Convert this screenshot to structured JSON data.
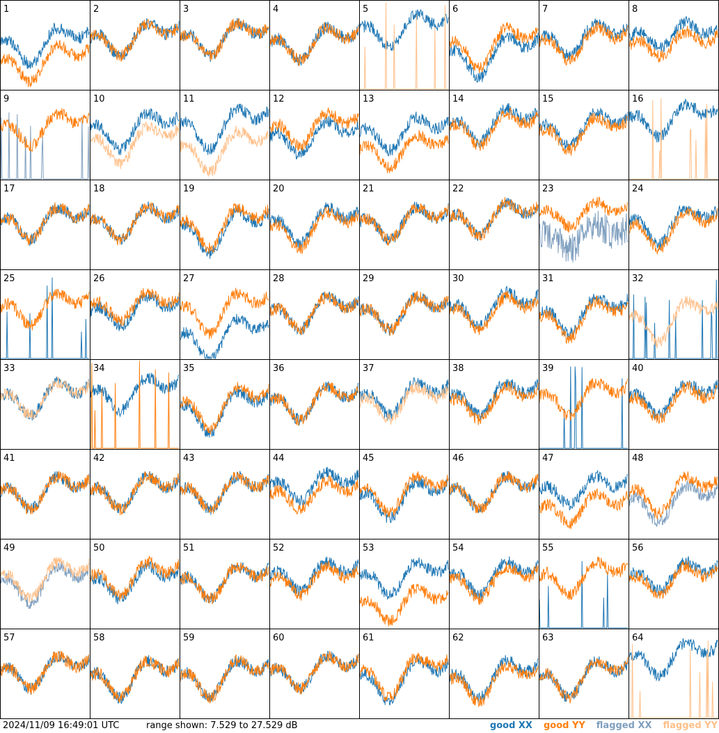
{
  "footer": {
    "timestamp": "2024/11/09 16:49:01 UTC",
    "range_text": "range shown: 7.529 to 27.529 dB"
  },
  "legend": [
    {
      "key": "good_xx",
      "label": "good XX",
      "color": "#1f77b4"
    },
    {
      "key": "good_yy",
      "label": "good YY",
      "color": "#ff7f0e"
    },
    {
      "key": "flagged_xx",
      "label": "flagged XX",
      "color": "#7f9fbf"
    },
    {
      "key": "flagged_yy",
      "label": "flagged YY",
      "color": "#ffc08a"
    }
  ],
  "chart_data": {
    "type": "line",
    "ylim": [
      7.529,
      27.529
    ],
    "grid": {
      "rows": 8,
      "cols": 8
    },
    "panels": [
      {
        "id": 1,
        "xx": "good",
        "yy": "good",
        "xx_level": 0.55,
        "yy_level": 0.35,
        "dip": 0.25
      },
      {
        "id": 2,
        "xx": "good",
        "yy": "good",
        "xx_level": 0.6,
        "yy_level": 0.6,
        "dip": 0.2
      },
      {
        "id": 3,
        "xx": "good",
        "yy": "good",
        "xx_level": 0.6,
        "yy_level": 0.6,
        "dip": 0.2
      },
      {
        "id": 4,
        "xx": "good",
        "yy": "good",
        "xx_level": 0.55,
        "yy_level": 0.55,
        "dip": 0.2
      },
      {
        "id": 5,
        "xx": "good",
        "yy": "flagged_spikes",
        "xx_level": 0.7,
        "yy_level": 0.0,
        "dip": 0.2
      },
      {
        "id": 6,
        "xx": "good",
        "yy": "good",
        "xx_level": 0.45,
        "yy_level": 0.55,
        "dip": 0.3
      },
      {
        "id": 7,
        "xx": "good",
        "yy": "good",
        "xx_level": 0.6,
        "yy_level": 0.55,
        "dip": 0.2
      },
      {
        "id": 8,
        "xx": "good",
        "yy": "good",
        "xx_level": 0.6,
        "yy_level": 0.5,
        "dip": 0.1
      },
      {
        "id": 9,
        "xx": "flagged_spikes",
        "yy": "good",
        "xx_level": 0.0,
        "yy_level": 0.6,
        "dip": 0.2
      },
      {
        "id": 10,
        "xx": "good",
        "yy": "flagged",
        "xx_level": 0.6,
        "yy_level": 0.45,
        "dip": 0.25
      },
      {
        "id": 11,
        "xx": "good",
        "yy": "flagged",
        "xx_level": 0.65,
        "yy_level": 0.4,
        "dip": 0.3
      },
      {
        "id": 12,
        "xx": "good",
        "yy": "good",
        "xx_level": 0.5,
        "yy_level": 0.6,
        "dip": 0.2
      },
      {
        "id": 13,
        "xx": "good",
        "yy": "good",
        "xx_level": 0.55,
        "yy_level": 0.35,
        "dip": 0.2
      },
      {
        "id": 14,
        "xx": "good",
        "yy": "good",
        "xx_level": 0.65,
        "yy_level": 0.6,
        "dip": 0.2
      },
      {
        "id": 15,
        "xx": "good",
        "yy": "good",
        "xx_level": 0.6,
        "yy_level": 0.55,
        "dip": 0.2
      },
      {
        "id": 16,
        "xx": "good",
        "yy": "flagged_spikes",
        "xx_level": 0.7,
        "yy_level": 0.0,
        "dip": 0.2
      },
      {
        "id": 17,
        "xx": "good",
        "yy": "good",
        "xx_level": 0.55,
        "yy_level": 0.55,
        "dip": 0.2
      },
      {
        "id": 18,
        "xx": "good",
        "yy": "good",
        "xx_level": 0.55,
        "yy_level": 0.55,
        "dip": 0.2
      },
      {
        "id": 19,
        "xx": "good",
        "yy": "good",
        "xx_level": 0.5,
        "yy_level": 0.55,
        "dip": 0.3
      },
      {
        "id": 20,
        "xx": "good",
        "yy": "good",
        "xx_level": 0.55,
        "yy_level": 0.5,
        "dip": 0.25
      },
      {
        "id": 21,
        "xx": "good",
        "yy": "good",
        "xx_level": 0.55,
        "yy_level": 0.55,
        "dip": 0.2
      },
      {
        "id": 22,
        "xx": "good",
        "yy": "good",
        "xx_level": 0.6,
        "yy_level": 0.6,
        "dip": 0.2
      },
      {
        "id": 23,
        "xx": "flagged_noisy",
        "yy": "good",
        "xx_level": 0.35,
        "yy_level": 0.6,
        "dip": 0.1
      },
      {
        "id": 24,
        "xx": "good",
        "yy": "good",
        "xx_level": 0.55,
        "yy_level": 0.5,
        "dip": 0.25
      },
      {
        "id": 25,
        "xx": "flagged_spikes_good",
        "yy": "good",
        "xx_level": 0.0,
        "yy_level": 0.6,
        "dip": 0.2
      },
      {
        "id": 26,
        "xx": "good",
        "yy": "good",
        "xx_level": 0.55,
        "yy_level": 0.6,
        "dip": 0.15
      },
      {
        "id": 27,
        "xx": "good_low",
        "yy": "good",
        "xx_level": 0.3,
        "yy_level": 0.6,
        "dip": 0.3
      },
      {
        "id": 28,
        "xx": "good",
        "yy": "good",
        "xx_level": 0.55,
        "yy_level": 0.55,
        "dip": 0.2
      },
      {
        "id": 29,
        "xx": "good",
        "yy": "good",
        "xx_level": 0.55,
        "yy_level": 0.55,
        "dip": 0.2
      },
      {
        "id": 30,
        "xx": "good",
        "yy": "good",
        "xx_level": 0.6,
        "yy_level": 0.55,
        "dip": 0.2
      },
      {
        "id": 31,
        "xx": "good",
        "yy": "good",
        "xx_level": 0.55,
        "yy_level": 0.5,
        "dip": 0.25
      },
      {
        "id": 32,
        "xx": "flagged_spikes_good",
        "yy": "flagged",
        "xx_level": 0.0,
        "yy_level": 0.5,
        "dip": 0.3
      },
      {
        "id": 33,
        "xx": "good",
        "yy": "flagged",
        "xx_level": 0.6,
        "yy_level": 0.6,
        "dip": 0.2
      },
      {
        "id": 34,
        "xx": "good",
        "yy": "good_spikes",
        "xx_level": 0.65,
        "yy_level": 0.0,
        "dip": 0.2
      },
      {
        "id": 35,
        "xx": "good",
        "yy": "good",
        "xx_level": 0.5,
        "yy_level": 0.55,
        "dip": 0.3
      },
      {
        "id": 36,
        "xx": "good",
        "yy": "good",
        "xx_level": 0.55,
        "yy_level": 0.55,
        "dip": 0.2
      },
      {
        "id": 37,
        "xx": "good",
        "yy": "flagged",
        "xx_level": 0.6,
        "yy_level": 0.55,
        "dip": 0.2
      },
      {
        "id": 38,
        "xx": "good",
        "yy": "good",
        "xx_level": 0.6,
        "yy_level": 0.55,
        "dip": 0.2
      },
      {
        "id": 39,
        "xx": "good_spikes",
        "yy": "good",
        "xx_level": 0.0,
        "yy_level": 0.6,
        "dip": 0.2
      },
      {
        "id": 40,
        "xx": "good",
        "yy": "good",
        "xx_level": 0.6,
        "yy_level": 0.55,
        "dip": 0.2
      },
      {
        "id": 41,
        "xx": "good",
        "yy": "good",
        "xx_level": 0.55,
        "yy_level": 0.55,
        "dip": 0.2
      },
      {
        "id": 42,
        "xx": "good",
        "yy": "good",
        "xx_level": 0.55,
        "yy_level": 0.55,
        "dip": 0.2
      },
      {
        "id": 43,
        "xx": "good",
        "yy": "good",
        "xx_level": 0.55,
        "yy_level": 0.55,
        "dip": 0.2
      },
      {
        "id": 44,
        "xx": "good",
        "yy": "good",
        "xx_level": 0.6,
        "yy_level": 0.5,
        "dip": 0.15
      },
      {
        "id": 45,
        "xx": "good",
        "yy": "good",
        "xx_level": 0.5,
        "yy_level": 0.55,
        "dip": 0.25
      },
      {
        "id": 46,
        "xx": "good",
        "yy": "good",
        "xx_level": 0.55,
        "yy_level": 0.55,
        "dip": 0.2
      },
      {
        "id": 47,
        "xx": "good",
        "yy": "good",
        "xx_level": 0.55,
        "yy_level": 0.35,
        "dip": 0.15
      },
      {
        "id": 48,
        "xx": "flagged",
        "yy": "good",
        "xx_level": 0.45,
        "yy_level": 0.55,
        "dip": 0.25
      },
      {
        "id": 49,
        "xx": "flagged",
        "yy": "flagged",
        "xx_level": 0.55,
        "yy_level": 0.6,
        "dip": 0.25
      },
      {
        "id": 50,
        "xx": "good",
        "yy": "good",
        "xx_level": 0.55,
        "yy_level": 0.6,
        "dip": 0.2
      },
      {
        "id": 51,
        "xx": "good",
        "yy": "good",
        "xx_level": 0.55,
        "yy_level": 0.55,
        "dip": 0.2
      },
      {
        "id": 52,
        "xx": "good",
        "yy": "good",
        "xx_level": 0.6,
        "yy_level": 0.55,
        "dip": 0.15
      },
      {
        "id": 53,
        "xx": "good",
        "yy": "good_low",
        "xx_level": 0.6,
        "yy_level": 0.3,
        "dip": 0.2
      },
      {
        "id": 54,
        "xx": "good",
        "yy": "good",
        "xx_level": 0.6,
        "yy_level": 0.55,
        "dip": 0.2
      },
      {
        "id": 55,
        "xx": "good_spikes",
        "yy": "good",
        "xx_level": 0.0,
        "yy_level": 0.6,
        "dip": 0.2
      },
      {
        "id": 56,
        "xx": "good",
        "yy": "good",
        "xx_level": 0.6,
        "yy_level": 0.55,
        "dip": 0.15
      },
      {
        "id": 57,
        "xx": "good",
        "yy": "good",
        "xx_level": 0.55,
        "yy_level": 0.55,
        "dip": 0.2
      },
      {
        "id": 58,
        "xx": "good",
        "yy": "good",
        "xx_level": 0.5,
        "yy_level": 0.5,
        "dip": 0.25
      },
      {
        "id": 59,
        "xx": "good",
        "yy": "good",
        "xx_level": 0.5,
        "yy_level": 0.5,
        "dip": 0.25
      },
      {
        "id": 60,
        "xx": "good",
        "yy": "good",
        "xx_level": 0.55,
        "yy_level": 0.55,
        "dip": 0.2
      },
      {
        "id": 61,
        "xx": "good",
        "yy": "good",
        "xx_level": 0.5,
        "yy_level": 0.55,
        "dip": 0.3
      },
      {
        "id": 62,
        "xx": "good",
        "yy": "good",
        "xx_level": 0.5,
        "yy_level": 0.45,
        "dip": 0.25
      },
      {
        "id": 63,
        "xx": "good",
        "yy": "good",
        "xx_level": 0.5,
        "yy_level": 0.5,
        "dip": 0.25
      },
      {
        "id": 64,
        "xx": "good",
        "yy": "flagged_spikes",
        "xx_level": 0.7,
        "yy_level": 0.0,
        "dip": 0.2
      }
    ]
  }
}
